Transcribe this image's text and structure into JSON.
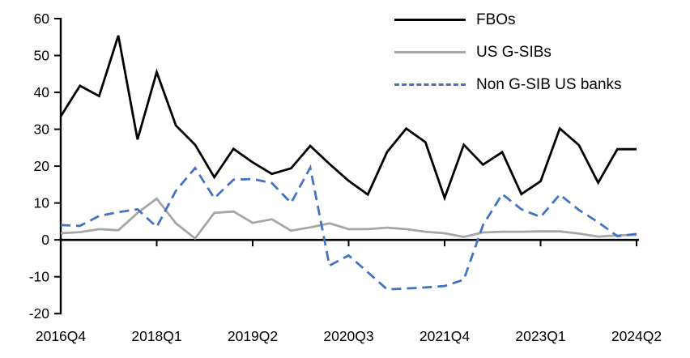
{
  "chart_data": {
    "type": "line",
    "title": "",
    "xlabel": "",
    "ylabel": "",
    "ylim": [
      -20,
      60
    ],
    "ytick_step": 10,
    "grid": false,
    "legend_position": "top-right-vertical",
    "y_ticks": [
      "60",
      "50",
      "40",
      "30",
      "20",
      "10",
      "0",
      "-10",
      "-20"
    ],
    "y_tick_values": [
      60,
      50,
      40,
      30,
      20,
      10,
      0,
      -10,
      -20
    ],
    "x_ticks": [
      {
        "index": 0,
        "label": "2016Q4"
      },
      {
        "index": 5,
        "label": "2018Q1"
      },
      {
        "index": 10,
        "label": "2019Q2"
      },
      {
        "index": 15,
        "label": "2020Q3"
      },
      {
        "index": 20,
        "label": "2021Q4"
      },
      {
        "index": 25,
        "label": "2023Q1"
      },
      {
        "index": 30,
        "label": "2024Q2"
      }
    ],
    "categories": [
      "2016Q4",
      "2017Q1",
      "2017Q2",
      "2017Q3",
      "2017Q4",
      "2018Q1",
      "2018Q2",
      "2018Q3",
      "2018Q4",
      "2019Q1",
      "2019Q2",
      "2019Q3",
      "2019Q4",
      "2020Q1",
      "2020Q2",
      "2020Q3",
      "2020Q4",
      "2021Q1",
      "2021Q2",
      "2021Q3",
      "2021Q4",
      "2022Q1",
      "2022Q2",
      "2022Q3",
      "2022Q4",
      "2023Q1",
      "2023Q2",
      "2023Q3",
      "2023Q4",
      "2024Q1",
      "2024Q2"
    ],
    "series": [
      {
        "name": "FBOs",
        "color": "#000000",
        "style": "solid",
        "values": [
          33.5,
          41.8,
          39.0,
          55.4,
          27.2,
          45.5,
          31.0,
          25.8,
          17.0,
          24.7,
          21.0,
          17.9,
          19.4,
          25.5,
          20.6,
          16.0,
          12.3,
          23.8,
          30.2,
          26.5,
          11.4,
          25.8,
          20.4,
          23.8,
          12.4,
          15.9,
          30.2,
          25.7,
          15.5,
          24.6,
          24.6
        ]
      },
      {
        "name": "US G-SIBs",
        "color": "#a6a6a6",
        "style": "solid",
        "values": [
          1.8,
          2.1,
          2.9,
          2.6,
          7.3,
          11.2,
          4.5,
          0.4,
          7.3,
          7.7,
          4.6,
          5.6,
          2.5,
          3.4,
          4.5,
          2.9,
          2.9,
          3.3,
          2.9,
          2.2,
          1.8,
          0.8,
          2.0,
          2.2,
          2.2,
          2.3,
          2.3,
          1.7,
          0.9,
          1.2,
          1.4
        ]
      },
      {
        "name": "Non G-SIB US banks",
        "color": "#4472c4",
        "style": "dashed",
        "values": [
          4.0,
          3.8,
          6.5,
          7.5,
          8.3,
          3.5,
          13.3,
          19.5,
          11.3,
          16.3,
          16.5,
          15.4,
          10.0,
          19.6,
          -7.0,
          -4.2,
          -8.8,
          -13.4,
          -13.2,
          -12.9,
          -12.5,
          -10.8,
          4.0,
          12.4,
          8.3,
          6.2,
          12.3,
          8.1,
          4.8,
          1.0,
          1.6
        ]
      }
    ]
  },
  "legend": {
    "items": [
      {
        "label": "FBOs"
      },
      {
        "label": "US G-SIBs"
      },
      {
        "label": "Non G-SIB US banks"
      }
    ]
  }
}
